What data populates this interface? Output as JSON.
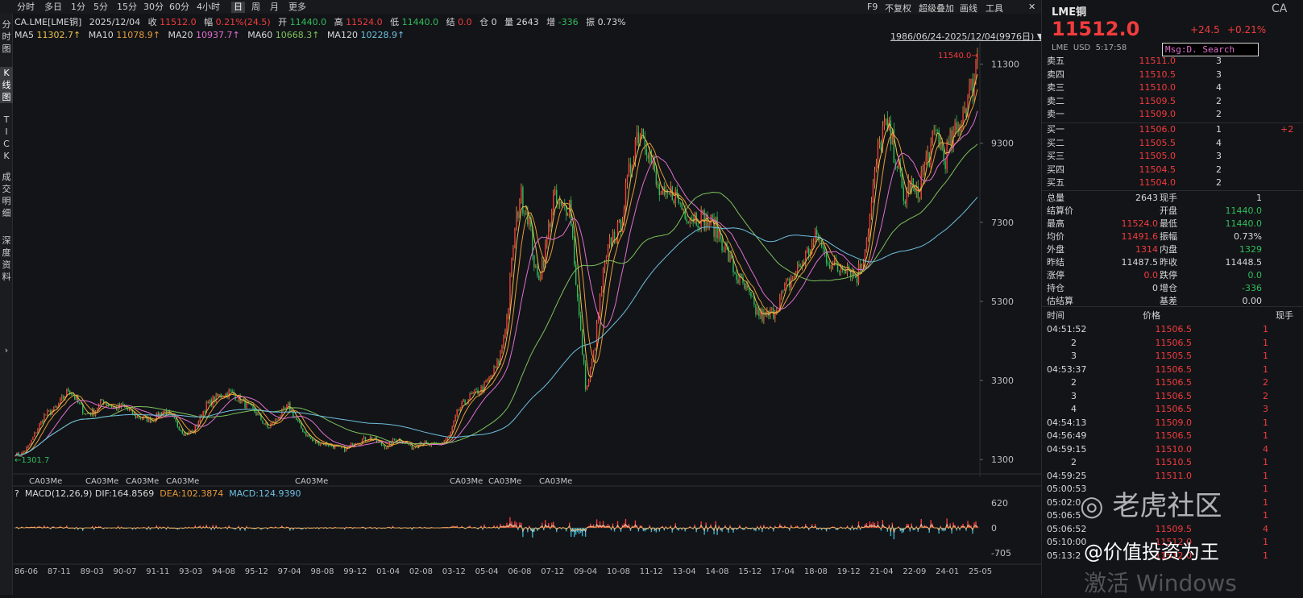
{
  "toolbar": {
    "periods": [
      "分时",
      "多日",
      "1分",
      "5分",
      "15分",
      "30分",
      "60分",
      "4小时",
      "日",
      "周",
      "月",
      "更多"
    ],
    "active_period": "日",
    "right": [
      "F9",
      "不复权",
      "超级叠加",
      "画线",
      "工具"
    ]
  },
  "left_tabs": [
    "分时图",
    "K线图",
    "TICK",
    "成交明细",
    "深度资料"
  ],
  "info": {
    "symbol": "CA.LME[LME铜]",
    "date": "2025/12/04",
    "close_label": "收",
    "close": "11512.0",
    "change_label": "幅",
    "change": "0.21%(24.5)",
    "open_label": "开",
    "open": "11440.0",
    "high_label": "高",
    "high": "11524.0",
    "low_label": "低",
    "low": "11440.0",
    "settle_label": "结",
    "settle": "0.0",
    "oi_label": "仓",
    "oi": "0",
    "vol_label": "量",
    "vol": "2643",
    "inc_label": "增",
    "inc": "-336",
    "amp_label": "振",
    "amp": "0.73%"
  },
  "ma": {
    "ma5_label": "MA5",
    "ma5": "11302.7↑",
    "ma10_label": "MA10",
    "ma10": "11078.9↑",
    "ma20_label": "MA20",
    "ma20": "10937.7↑",
    "ma60_label": "MA60",
    "ma60": "10668.3↑",
    "ma120_label": "MA120",
    "ma120": "10228.9↑"
  },
  "range_text": "1986/06/24-2025/12/04(9976日)",
  "price_axis": [
    "11300",
    "9300",
    "7300",
    "5300",
    "3300",
    "1300"
  ],
  "max_marker": "11540.0",
  "min_marker": "1301.7",
  "contract_labels": [
    "CA03Me",
    "CA03Me",
    "CA03Me",
    "CA03Me",
    "CA03Me",
    "CA03Me",
    "CA03Me",
    "CA03Me"
  ],
  "macd": {
    "name": "MACD(12,26,9)",
    "dif_label": "DIF:",
    "dif": "164.8569",
    "dea_label": "DEA:",
    "dea": "102.3874",
    "macd_label": "MACD:",
    "macd": "124.9390",
    "axis": [
      "620",
      "0",
      "-705"
    ]
  },
  "time_axis": [
    "86-06",
    "87-11",
    "89-03",
    "90-07",
    "91-11",
    "93-03",
    "94-08",
    "95-12",
    "97-04",
    "98-08",
    "99-12",
    "01-04",
    "02-08",
    "03-12",
    "05-04",
    "06-08",
    "07-12",
    "09-04",
    "10-08",
    "11-12",
    "13-04",
    "14-08",
    "15-12",
    "17-04",
    "18-08",
    "19-12",
    "21-04",
    "22-09",
    "24-01",
    "25-05"
  ],
  "right_panel": {
    "title": "LME铜",
    "code": "CA",
    "price": "11512.0",
    "change": "+24.5",
    "change_pct": "+0.21%",
    "market": "LME",
    "currency": "USD",
    "time": "5:17:58",
    "popup": "Msg:D. Search",
    "asks": [
      {
        "label": "卖五",
        "price": "11511.0",
        "qty": "3"
      },
      {
        "label": "卖四",
        "price": "11510.5",
        "qty": "3"
      },
      {
        "label": "卖三",
        "price": "11510.0",
        "qty": "4"
      },
      {
        "label": "卖二",
        "price": "11509.5",
        "qty": "2"
      },
      {
        "label": "卖一",
        "price": "11509.0",
        "qty": "2"
      }
    ],
    "bids": [
      {
        "label": "买一",
        "price": "11506.0",
        "qty": "1",
        "extra": "+2"
      },
      {
        "label": "买二",
        "price": "11505.5",
        "qty": "4",
        "extra": ""
      },
      {
        "label": "买三",
        "price": "11505.0",
        "qty": "3",
        "extra": ""
      },
      {
        "label": "买四",
        "price": "11504.5",
        "qty": "2",
        "extra": ""
      },
      {
        "label": "买五",
        "price": "11504.0",
        "qty": "2",
        "extra": ""
      }
    ],
    "stats": [
      {
        "l1": "总量",
        "v1": "2643",
        "l2": "现手",
        "v2": "1",
        "c1": "wc",
        "c2": "wc"
      },
      {
        "l1": "结算价",
        "v1": "",
        "l2": "开盘",
        "v2": "11440.0",
        "c1": "wc",
        "c2": "gn"
      },
      {
        "l1": "最高",
        "v1": "11524.0",
        "l2": "最低",
        "v2": "11440.0",
        "c1": "rd",
        "c2": "gn"
      },
      {
        "l1": "均价",
        "v1": "11491.6",
        "l2": "振幅",
        "v2": "0.73%",
        "c1": "rd",
        "c2": "wc"
      },
      {
        "l1": "外盘",
        "v1": "1314",
        "l2": "内盘",
        "v2": "1329",
        "c1": "rd",
        "c2": "gn"
      },
      {
        "l1": "昨结",
        "v1": "11487.5",
        "l2": "昨收",
        "v2": "11448.5",
        "c1": "wc",
        "c2": "wc"
      },
      {
        "l1": "涨停",
        "v1": "0.0",
        "l2": "跌停",
        "v2": "0.0",
        "c1": "rd",
        "c2": "gn"
      },
      {
        "l1": "持仓",
        "v1": "0",
        "l2": "增仓",
        "v2": "-336",
        "c1": "wc",
        "c2": "gn"
      },
      {
        "l1": "估结算",
        "v1": "",
        "l2": "基差",
        "v2": "0.00",
        "c1": "wc",
        "c2": "wc"
      }
    ],
    "tick_header": {
      "time": "时间",
      "price": "价格",
      "qty": "现手"
    },
    "ticks": [
      {
        "t": "04:51:52",
        "p": "11506.5",
        "q": "1"
      },
      {
        "t": "2",
        "p": "11506.5",
        "q": "1"
      },
      {
        "t": "3",
        "p": "11505.5",
        "q": "1"
      },
      {
        "t": "04:53:37",
        "p": "11506.5",
        "q": "1"
      },
      {
        "t": "2",
        "p": "11506.5",
        "q": "2"
      },
      {
        "t": "3",
        "p": "11506.5",
        "q": "2"
      },
      {
        "t": "4",
        "p": "11506.5",
        "q": "3"
      },
      {
        "t": "04:54:13",
        "p": "11509.0",
        "q": "1"
      },
      {
        "t": "04:56:49",
        "p": "11506.5",
        "q": "1"
      },
      {
        "t": "04:59:15",
        "p": "11510.0",
        "q": "4"
      },
      {
        "t": "2",
        "p": "11510.5",
        "q": "1"
      },
      {
        "t": "04:59:25",
        "p": "11511.0",
        "q": "1"
      },
      {
        "t": "05:00:53",
        "p": "",
        "q": "1"
      },
      {
        "t": "05:02:0",
        "p": "",
        "q": "1"
      },
      {
        "t": "05:06:5",
        "p": "",
        "q": "1"
      },
      {
        "t": "05:06:52",
        "p": "11509.5",
        "q": "4"
      },
      {
        "t": "05:10:00",
        "p": "11512.0",
        "q": "1"
      },
      {
        "t": "05:13:2",
        "p": "11512.0",
        "q": "1"
      }
    ]
  },
  "overlay": {
    "brand": "老虎社区",
    "handle": "@价值投资为王",
    "activate": "激活 Windows"
  },
  "colors": {
    "up": "#f23c3c",
    "down": "#2fbe5b",
    "bg": "#131418",
    "ma5": "#e8c24a",
    "ma10": "#e59a3a",
    "ma20": "#e070d0",
    "ma60": "#7cc35a",
    "ma120": "#6ec0e0"
  }
}
